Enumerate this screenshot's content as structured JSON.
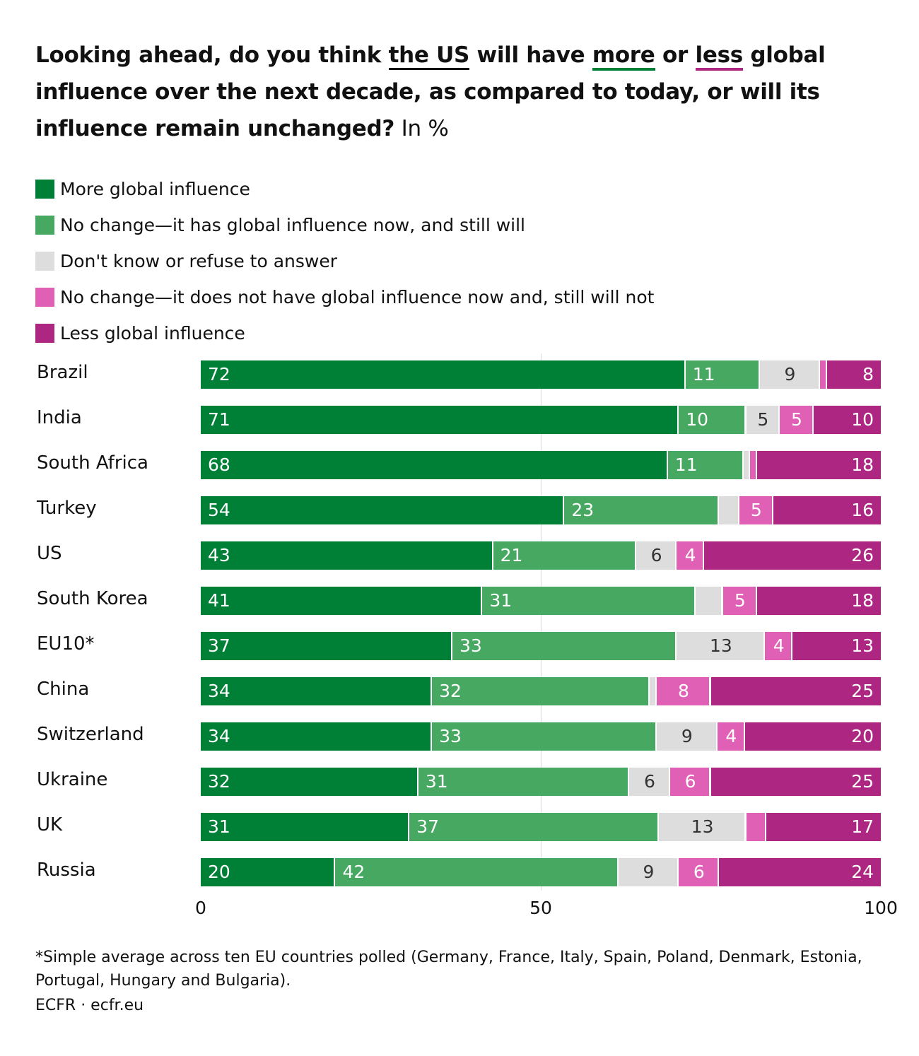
{
  "title": {
    "part1": "Looking ahead, do you think ",
    "us": "the US",
    "part2": " will have ",
    "more": "more",
    "part3": " or ",
    "less": "less",
    "part4": " global influence over the next decade, as compared to today, or will its influence remain unchanged?",
    "unit": " In %"
  },
  "footnote": "*Simple average across ten EU countries polled (Germany, France, Italy, Spain, Poland, Denmark, Estonia, Portugal, Hungary and Bulgaria).",
  "source": "ECFR · ecfr.eu",
  "chart_data": {
    "type": "bar",
    "orientation": "horizontal",
    "stacked": true,
    "xlim": [
      0,
      100
    ],
    "xticks": [
      "0",
      "50",
      "100"
    ],
    "grid": true,
    "legend_position": "top",
    "categories": [
      "Brazil",
      "India",
      "South Africa",
      "Turkey",
      "US",
      "South Korea",
      "EU10*",
      "China",
      "Switzerland",
      "Ukraine",
      "UK",
      "Russia"
    ],
    "series": [
      {
        "name": "More global influence",
        "color": "#008037",
        "values": [
          72,
          71,
          68,
          54,
          43,
          41,
          37,
          34,
          34,
          32,
          31,
          20
        ]
      },
      {
        "name": "No change—it has global influence now, and still will",
        "color": "#46a861",
        "values": [
          11,
          10,
          11,
          23,
          21,
          31,
          33,
          32,
          33,
          31,
          37,
          42
        ]
      },
      {
        "name": "Don't know or refuse to answer",
        "color": "#dddddd",
        "values": [
          9,
          5,
          1,
          3,
          6,
          4,
          13,
          1,
          9,
          6,
          13,
          9
        ]
      },
      {
        "name": "No change—it does not have global influence now and, still will not",
        "color": "#e060b5",
        "values": [
          1,
          5,
          1,
          5,
          4,
          5,
          4,
          8,
          4,
          6,
          3,
          6
        ]
      },
      {
        "name": "Less global influence",
        "color": "#ad2782",
        "values": [
          8,
          10,
          18,
          16,
          26,
          18,
          13,
          25,
          20,
          25,
          17,
          24
        ]
      }
    ],
    "labels": [
      [
        "72",
        "11",
        "9",
        "",
        "8"
      ],
      [
        "71",
        "10",
        "5",
        "5",
        "10"
      ],
      [
        "68",
        "11",
        "",
        "",
        "18"
      ],
      [
        "54",
        "23",
        "",
        "5",
        "16"
      ],
      [
        "43",
        "21",
        "6",
        "4",
        "26"
      ],
      [
        "41",
        "31",
        "",
        "5",
        "18"
      ],
      [
        "37",
        "33",
        "13",
        "4",
        "13"
      ],
      [
        "34",
        "32",
        "",
        "8",
        "25"
      ],
      [
        "34",
        "33",
        "9",
        "4",
        "20"
      ],
      [
        "32",
        "31",
        "6",
        "6",
        "25"
      ],
      [
        "31",
        "37",
        "13",
        "",
        "17"
      ],
      [
        "20",
        "42",
        "9",
        "6",
        "24"
      ]
    ]
  }
}
